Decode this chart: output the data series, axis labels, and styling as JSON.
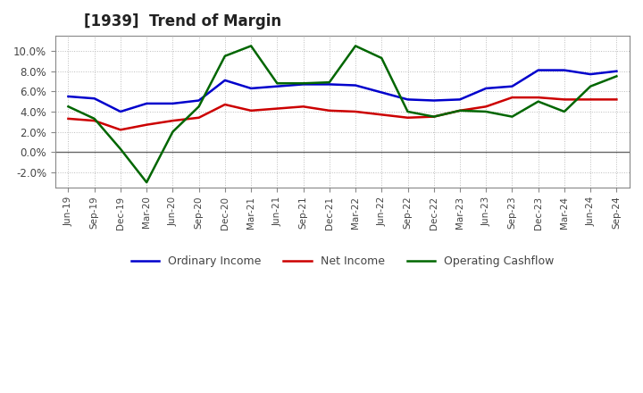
{
  "title": "[1939]  Trend of Margin",
  "x_labels": [
    "Jun-19",
    "Sep-19",
    "Dec-19",
    "Mar-20",
    "Jun-20",
    "Sep-20",
    "Dec-20",
    "Mar-21",
    "Jun-21",
    "Sep-21",
    "Dec-21",
    "Mar-22",
    "Jun-22",
    "Sep-22",
    "Dec-22",
    "Mar-23",
    "Jun-23",
    "Sep-23",
    "Dec-23",
    "Mar-24",
    "Jun-24",
    "Sep-24"
  ],
  "ordinary_income": [
    5.5,
    5.3,
    4.0,
    4.8,
    4.8,
    5.1,
    7.1,
    6.3,
    6.5,
    6.7,
    6.7,
    6.6,
    5.9,
    5.2,
    5.1,
    5.2,
    6.3,
    6.5,
    8.1,
    8.1,
    7.7,
    8.0
  ],
  "net_income": [
    3.3,
    3.1,
    2.2,
    2.7,
    3.1,
    3.4,
    4.7,
    4.1,
    4.3,
    4.5,
    4.1,
    4.0,
    3.7,
    3.4,
    3.5,
    4.1,
    4.5,
    5.4,
    5.4,
    5.2,
    5.2,
    5.2
  ],
  "operating_cashflow": [
    4.5,
    3.3,
    0.3,
    -3.0,
    2.0,
    4.5,
    9.5,
    10.5,
    6.8,
    6.8,
    6.9,
    10.5,
    9.3,
    4.0,
    3.5,
    4.1,
    4.0,
    3.5,
    5.0,
    4.0,
    6.5,
    7.5
  ],
  "ylim": [
    -3.5,
    11.5
  ],
  "yticks": [
    -2.0,
    0.0,
    2.0,
    4.0,
    6.0,
    8.0,
    10.0
  ],
  "line_colors": {
    "ordinary_income": "#0000cc",
    "net_income": "#cc0000",
    "operating_cashflow": "#006600"
  },
  "legend_labels": [
    "Ordinary Income",
    "Net Income",
    "Operating Cashflow"
  ],
  "background_color": "#ffffff",
  "grid_color": "#bbbbbb"
}
